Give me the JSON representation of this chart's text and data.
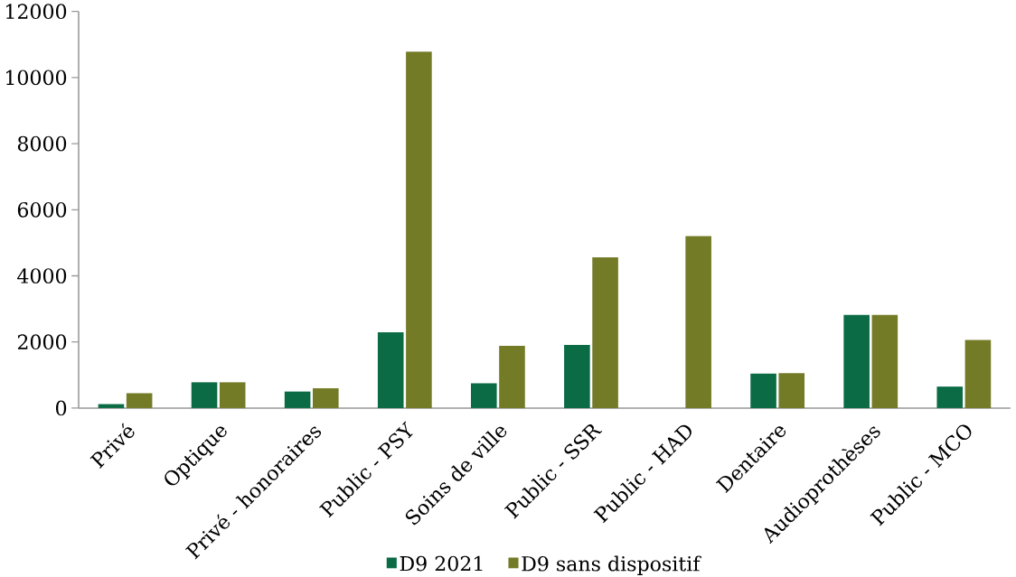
{
  "chart_data": {
    "type": "bar",
    "categories": [
      "Privé",
      "Optique",
      "Privé - honoraires",
      "Public - PSY",
      "Soins de ville",
      "Public - SSR",
      "Public - HAD",
      "Dentaire",
      "Audioprothèses",
      "Public - MCO"
    ],
    "series": [
      {
        "name": "D9 2021",
        "color": "#0b6b45",
        "values": [
          120,
          780,
          500,
          2290,
          750,
          1910,
          0,
          1040,
          2820,
          650
        ]
      },
      {
        "name": "D9 sans dispositif",
        "color": "#747b27",
        "values": [
          450,
          780,
          600,
          10780,
          1880,
          4560,
          5200,
          1060,
          2820,
          2060
        ]
      }
    ],
    "ylim": [
      0,
      12000
    ],
    "yticks": [
      0,
      2000,
      4000,
      6000,
      8000,
      10000,
      12000
    ],
    "grid": false,
    "legend": "bottom"
  }
}
